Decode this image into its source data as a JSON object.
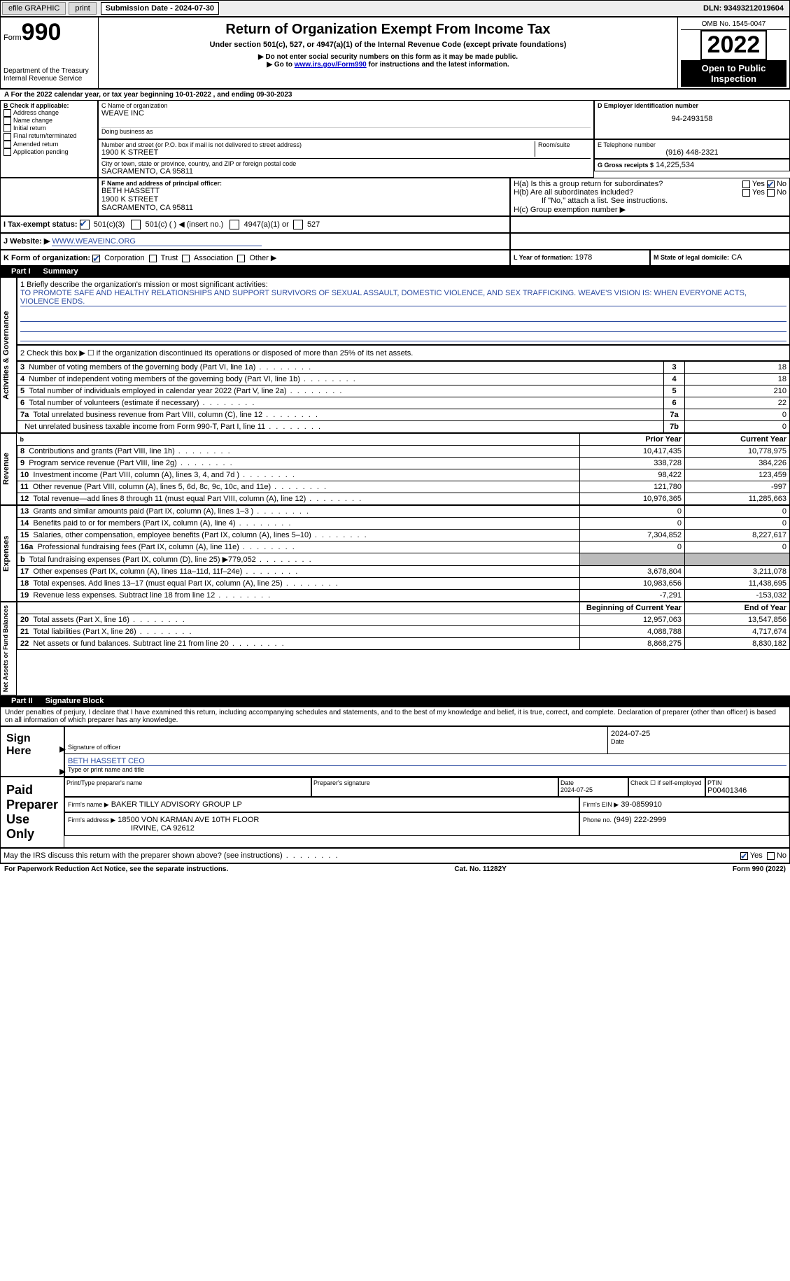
{
  "topbar": {
    "efile": "efile GRAPHIC",
    "print": "print",
    "subdate_label": "Submission Date - 2024-07-30",
    "dln": "DLN: 93493212019604"
  },
  "header": {
    "form_label": "Form",
    "form_no": "990",
    "dept": "Department of the Treasury",
    "irs": "Internal Revenue Service",
    "title": "Return of Organization Exempt From Income Tax",
    "sub1": "Under section 501(c), 527, or 4947(a)(1) of the Internal Revenue Code (except private foundations)",
    "sub2": "▶ Do not enter social security numbers on this form as it may be made public.",
    "sub3_pre": "▶ Go to ",
    "sub3_link": "www.irs.gov/Form990",
    "sub3_post": " for instructions and the latest information.",
    "omb": "OMB No. 1545-0047",
    "year": "2022",
    "open": "Open to Public Inspection"
  },
  "lineA": "A For the 2022 calendar year, or tax year beginning 10-01-2022   , and ending 09-30-2023",
  "boxB": {
    "title": "B Check if applicable:",
    "opts": [
      "Address change",
      "Name change",
      "Initial return",
      "Final return/terminated",
      "Amended return",
      "Application pending"
    ]
  },
  "boxC": {
    "label": "C Name of organization",
    "name": "WEAVE INC",
    "dba": "Doing business as",
    "addr_label": "Number and street (or P.O. box if mail is not delivered to street address)",
    "room": "Room/suite",
    "addr": "1900 K STREET",
    "city_label": "City or town, state or province, country, and ZIP or foreign postal code",
    "city": "SACRAMENTO, CA  95811"
  },
  "boxD": {
    "label": "D Employer identification number",
    "val": "94-2493158"
  },
  "boxE": {
    "label": "E Telephone number",
    "val": "(916) 448-2321"
  },
  "boxG": {
    "label": "G Gross receipts $",
    "val": "14,225,534"
  },
  "boxF": {
    "label": "F Name and address of principal officer:",
    "name": "BETH HASSETT",
    "addr": "1900 K STREET",
    "city": "SACRAMENTO, CA  95811"
  },
  "boxH": {
    "a": "H(a)  Is this a group return for subordinates?",
    "b": "H(b)  Are all subordinates included?",
    "note": "If \"No,\" attach a list. See instructions.",
    "c": "H(c)  Group exemption number ▶",
    "yes": "Yes",
    "no": "No"
  },
  "boxI": {
    "label": "I   Tax-exempt status:",
    "o1": "501(c)(3)",
    "o2": "501(c) (  ) ◀ (insert no.)",
    "o3": "4947(a)(1) or",
    "o4": "527"
  },
  "boxJ": {
    "label": "J   Website: ▶",
    "val": "WWW.WEAVEINC.ORG"
  },
  "boxK": {
    "label": "K Form of organization:",
    "opts": [
      "Corporation",
      "Trust",
      "Association",
      "Other ▶"
    ]
  },
  "boxL": {
    "label": "L Year of formation:",
    "val": "1978"
  },
  "boxM": {
    "label": "M State of legal domicile:",
    "val": "CA"
  },
  "part1": {
    "tag": "Part I",
    "title": "Summary"
  },
  "summary": {
    "l1_label": "1  Briefly describe the organization's mission or most significant activities:",
    "l1_text": "TO PROMOTE SAFE AND HEALTHY RELATIONSHIPS AND SUPPORT SURVIVORS OF SEXUAL ASSAULT, DOMESTIC VIOLENCE, AND SEX TRAFFICKING. WEAVE'S VISION IS: WHEN EVERYONE ACTS, VIOLENCE ENDS.",
    "l2": "2   Check this box ▶ ☐  if the organization discontinued its operations or disposed of more than 25% of its net assets.",
    "rows_ag": [
      {
        "n": "3",
        "t": "Number of voting members of the governing body (Part VI, line 1a)",
        "box": "3",
        "v": "18"
      },
      {
        "n": "4",
        "t": "Number of independent voting members of the governing body (Part VI, line 1b)",
        "box": "4",
        "v": "18"
      },
      {
        "n": "5",
        "t": "Total number of individuals employed in calendar year 2022 (Part V, line 2a)",
        "box": "5",
        "v": "210"
      },
      {
        "n": "6",
        "t": "Total number of volunteers (estimate if necessary)",
        "box": "6",
        "v": "22"
      },
      {
        "n": "7a",
        "t": "Total unrelated business revenue from Part VIII, column (C), line 12",
        "box": "7a",
        "v": "0"
      },
      {
        "n": "",
        "t": "Net unrelated business taxable income from Form 990-T, Part I, line 11",
        "box": "7b",
        "v": "0"
      }
    ],
    "col_py": "Prior Year",
    "col_cy": "Current Year",
    "rev_rows": [
      {
        "n": "8",
        "t": "Contributions and grants (Part VIII, line 1h)",
        "py": "10,417,435",
        "cy": "10,778,975"
      },
      {
        "n": "9",
        "t": "Program service revenue (Part VIII, line 2g)",
        "py": "338,728",
        "cy": "384,226"
      },
      {
        "n": "10",
        "t": "Investment income (Part VIII, column (A), lines 3, 4, and 7d )",
        "py": "98,422",
        "cy": "123,459"
      },
      {
        "n": "11",
        "t": "Other revenue (Part VIII, column (A), lines 5, 6d, 8c, 9c, 10c, and 11e)",
        "py": "121,780",
        "cy": "-997"
      },
      {
        "n": "12",
        "t": "Total revenue—add lines 8 through 11 (must equal Part VIII, column (A), line 12)",
        "py": "10,976,365",
        "cy": "11,285,663"
      }
    ],
    "exp_rows": [
      {
        "n": "13",
        "t": "Grants and similar amounts paid (Part IX, column (A), lines 1–3 )",
        "py": "0",
        "cy": "0"
      },
      {
        "n": "14",
        "t": "Benefits paid to or for members (Part IX, column (A), line 4)",
        "py": "0",
        "cy": "0"
      },
      {
        "n": "15",
        "t": "Salaries, other compensation, employee benefits (Part IX, column (A), lines 5–10)",
        "py": "7,304,852",
        "cy": "8,227,617"
      },
      {
        "n": "16a",
        "t": "Professional fundraising fees (Part IX, column (A), line 11e)",
        "py": "0",
        "cy": "0"
      },
      {
        "n": "b",
        "t": "Total fundraising expenses (Part IX, column (D), line 25) ▶779,052",
        "py": "gray",
        "cy": "gray"
      },
      {
        "n": "17",
        "t": "Other expenses (Part IX, column (A), lines 11a–11d, 11f–24e)",
        "py": "3,678,804",
        "cy": "3,211,078"
      },
      {
        "n": "18",
        "t": "Total expenses. Add lines 13–17 (must equal Part IX, column (A), line 25)",
        "py": "10,983,656",
        "cy": "11,438,695"
      },
      {
        "n": "19",
        "t": "Revenue less expenses. Subtract line 18 from line 12",
        "py": "-7,291",
        "cy": "-153,032"
      }
    ],
    "col_boy": "Beginning of Current Year",
    "col_eoy": "End of Year",
    "na_rows": [
      {
        "n": "20",
        "t": "Total assets (Part X, line 16)",
        "py": "12,957,063",
        "cy": "13,547,856"
      },
      {
        "n": "21",
        "t": "Total liabilities (Part X, line 26)",
        "py": "4,088,788",
        "cy": "4,717,674"
      },
      {
        "n": "22",
        "t": "Net assets or fund balances. Subtract line 21 from line 20",
        "py": "8,868,275",
        "cy": "8,830,182"
      }
    ],
    "vlabels": {
      "ag": "Activities & Governance",
      "rev": "Revenue",
      "exp": "Expenses",
      "na": "Net Assets or Fund Balances"
    }
  },
  "part2": {
    "tag": "Part II",
    "title": "Signature Block"
  },
  "sig": {
    "decl": "Under penalties of perjury, I declare that I have examined this return, including accompanying schedules and statements, and to the best of my knowledge and belief, it is true, correct, and complete. Declaration of preparer (other than officer) is based on all information of which preparer has any knowledge.",
    "sign_here": "Sign Here",
    "sig_officer": "Signature of officer",
    "sig_date": "2024-07-25",
    "date_lbl": "Date",
    "name_title": "BETH HASSETT CEO",
    "name_lbl": "Type or print name and title",
    "paid": "Paid Preparer Use Only",
    "prep_name_lbl": "Print/Type preparer's name",
    "prep_sig_lbl": "Preparer's signature",
    "prep_date_lbl": "Date",
    "prep_date": "2024-07-25",
    "check_self": "Check ☐ if self-employed",
    "ptin_lbl": "PTIN",
    "ptin": "P00401346",
    "firm_name_lbl": "Firm's name   ▶",
    "firm_name": "BAKER TILLY ADVISORY GROUP LP",
    "firm_ein_lbl": "Firm's EIN ▶",
    "firm_ein": "39-0859910",
    "firm_addr_lbl": "Firm's address ▶",
    "firm_addr": "18500 VON KARMAN AVE 10TH FLOOR",
    "firm_city": "IRVINE, CA  92612",
    "phone_lbl": "Phone no.",
    "phone": "(949) 222-2999",
    "discuss": "May the IRS discuss this return with the preparer shown above? (see instructions)",
    "yes": "Yes",
    "no": "No"
  },
  "footer": {
    "l": "For Paperwork Reduction Act Notice, see the separate instructions.",
    "c": "Cat. No. 11282Y",
    "r": "Form 990 (2022)"
  }
}
